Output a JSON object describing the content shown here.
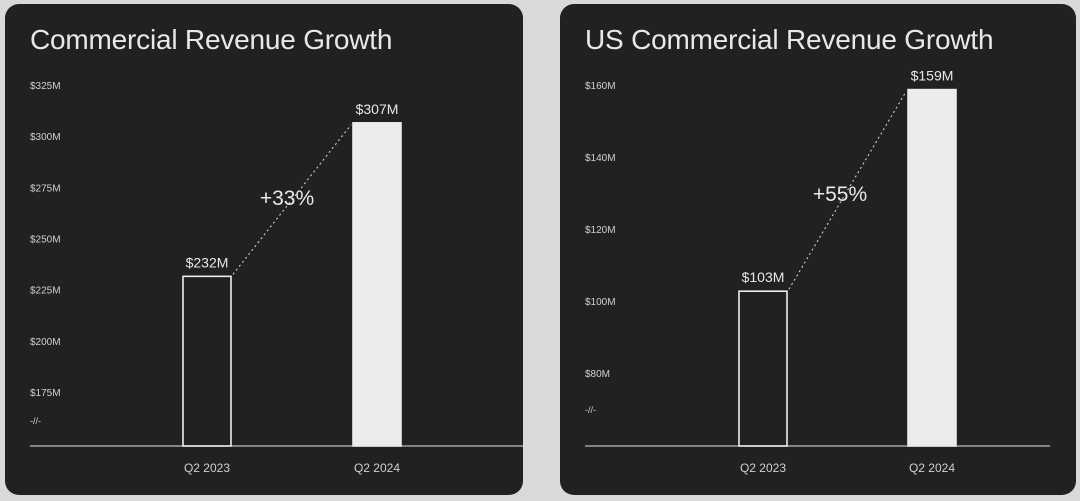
{
  "colors": {
    "background": "#d9d9d9",
    "panel": "#1f2123",
    "text": "#e8e8e8",
    "axis_text": "#d0d0d0",
    "bar_outline": "#ececec",
    "bar_fill": "#ececec"
  },
  "chart_data": [
    {
      "type": "bar",
      "title": "Commercial Revenue Growth",
      "categories": [
        "Q2 2023",
        "Q2 2024"
      ],
      "values": [
        232,
        307
      ],
      "value_labels": [
        "$232M",
        "$307M"
      ],
      "growth_label": "+33%",
      "yticks": [
        175,
        200,
        225,
        250,
        275,
        300,
        325
      ],
      "ytick_labels": [
        "$175M",
        "$200M",
        "$225M",
        "$250M",
        "$275M",
        "$300M",
        "$325M"
      ],
      "axis_break_label": "-//-",
      "ylim": [
        175,
        325
      ],
      "bar_styles": [
        "outline",
        "filled"
      ],
      "grid": false
    },
    {
      "type": "bar",
      "title": "US Commercial Revenue Growth",
      "categories": [
        "Q2 2023",
        "Q2 2024"
      ],
      "values": [
        103,
        159
      ],
      "value_labels": [
        "$103M",
        "$159M"
      ],
      "growth_label": "+55%",
      "yticks": [
        80,
        100,
        120,
        140,
        160
      ],
      "ytick_labels": [
        "$80M",
        "$100M",
        "$120M",
        "$140M",
        "$160M"
      ],
      "axis_break_label": "-//-",
      "ylim": [
        80,
        160
      ],
      "bar_styles": [
        "outline",
        "filled"
      ],
      "grid": false
    }
  ]
}
